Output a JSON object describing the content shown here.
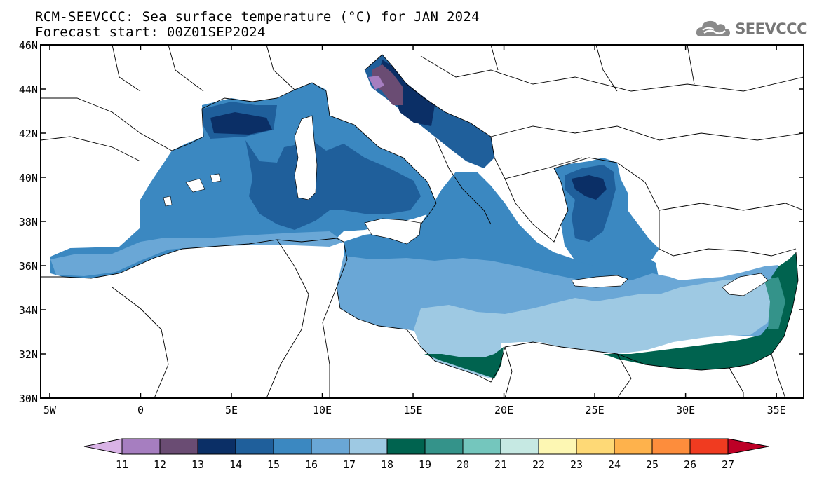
{
  "header": {
    "title": "RCM-SEEVCCC: Sea surface temperature (°C) for JAN 2024",
    "subtitle": "Forecast start: 00Z01SEP2024"
  },
  "logo": {
    "text": "SEEVCCC",
    "icon": "cloud-logo-icon"
  },
  "map": {
    "lat_labels": [
      "30N",
      "32N",
      "34N",
      "36N",
      "38N",
      "40N",
      "42N",
      "44N",
      "46N"
    ],
    "lon_labels": [
      "5W",
      "0",
      "5E",
      "10E",
      "15E",
      "20E",
      "25E",
      "30E",
      "35E"
    ],
    "lat_range": [
      30,
      46
    ],
    "lon_range": [
      -5.5,
      36.5
    ],
    "colors": {
      "land": "#ffffff",
      "border": "#000000"
    }
  },
  "colorbar": {
    "labels": [
      "11",
      "12",
      "13",
      "14",
      "15",
      "16",
      "17",
      "18",
      "19",
      "20",
      "21",
      "22",
      "23",
      "24",
      "25",
      "26",
      "27"
    ],
    "colors": [
      "#d9b3e6",
      "#a67ec0",
      "#6a4c73",
      "#0b2f66",
      "#1f5f9b",
      "#3b88c1",
      "#6aa7d6",
      "#9ec9e3",
      "#00634f",
      "#34938a",
      "#74c6bd",
      "#c6e9e3",
      "#fdf7b3",
      "#fed976",
      "#feb24c",
      "#fd8d3c",
      "#f03b20",
      "#bd0026"
    ]
  }
}
